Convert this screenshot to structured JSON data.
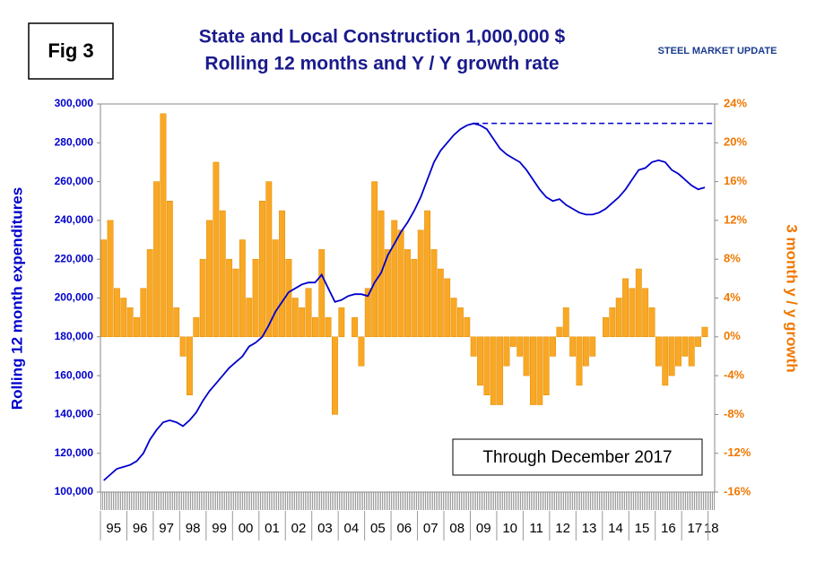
{
  "chart_data": {
    "type": "bar-line",
    "figure_label": "Fig 3",
    "title": "State and Local Construction 1,000,000 $",
    "subtitle": "Rolling 12 months and Y / Y growth rate",
    "logo": "STEEL MARKET UPDATE",
    "y_label": "Rolling 12 month expenditures",
    "y2_label": "3 month y / y growth",
    "annotation": "Through December 2017",
    "categories": [
      "95",
      null,
      null,
      null,
      "96",
      null,
      null,
      null,
      "97",
      null,
      null,
      null,
      "98",
      null,
      null,
      null,
      "99",
      null,
      null,
      null,
      "00",
      null,
      null,
      null,
      "01",
      null,
      null,
      null,
      "02",
      null,
      null,
      null,
      "03",
      null,
      null,
      null,
      "04",
      null,
      null,
      null,
      "05",
      null,
      null,
      null,
      "06",
      null,
      null,
      null,
      "07",
      null,
      null,
      null,
      "08",
      null,
      null,
      null,
      "09",
      null,
      null,
      null,
      "10",
      null,
      null,
      null,
      "11",
      null,
      null,
      null,
      "12",
      null,
      null,
      null,
      "13",
      null,
      null,
      null,
      "14",
      null,
      null,
      null,
      "15",
      null,
      null,
      null,
      "16",
      null,
      null,
      null,
      "17",
      null,
      null,
      null,
      "18"
    ],
    "series": [
      {
        "name": "3 month y / y growth",
        "kind": "bar",
        "axis": "y2",
        "color": "#f9a825",
        "values": [
          10,
          12,
          5,
          4,
          3,
          2,
          5,
          9,
          16,
          23,
          14,
          3,
          -2,
          -6,
          2,
          8,
          12,
          18,
          13,
          8,
          7,
          10,
          4,
          8,
          14,
          16,
          10,
          13,
          8,
          4,
          3,
          5,
          2,
          9,
          2,
          -8,
          3,
          0,
          2,
          -3,
          5,
          16,
          13,
          9,
          12,
          11,
          9,
          8,
          11,
          13,
          9,
          7,
          6,
          4,
          3,
          2,
          -2,
          -5,
          -6,
          -7,
          -7,
          -3,
          -1,
          -2,
          -4,
          -7,
          -7,
          -6,
          -2,
          1,
          3,
          -2,
          -5,
          -3,
          -2,
          0,
          2,
          3,
          4,
          6,
          5,
          7,
          5,
          3,
          -3,
          -5,
          -4,
          -3,
          -2,
          -3,
          -1,
          1,
          null
        ]
      },
      {
        "name": "Rolling 12 month expenditures",
        "kind": "line",
        "color": "#0000cc",
        "values": [
          106000,
          109000,
          112000,
          113000,
          114000,
          116000,
          120000,
          127000,
          132000,
          136000,
          137000,
          136000,
          134000,
          137000,
          141000,
          147000,
          152000,
          156000,
          160000,
          164000,
          167000,
          170000,
          175000,
          177000,
          180000,
          186000,
          193000,
          198000,
          203000,
          205000,
          207000,
          208000,
          208000,
          212000,
          205000,
          198000,
          199000,
          201000,
          202000,
          202000,
          201000,
          208000,
          213000,
          222000,
          228000,
          234000,
          239000,
          245000,
          252000,
          261000,
          270000,
          276000,
          280000,
          284000,
          287000,
          289000,
          290000,
          289000,
          287000,
          282000,
          277000,
          274000,
          272000,
          270000,
          266000,
          261000,
          256000,
          252000,
          250000,
          251000,
          248000,
          246000,
          244000,
          243000,
          243000,
          244000,
          246000,
          249000,
          252000,
          256000,
          261000,
          266000,
          267000,
          270000,
          271000,
          270000,
          266000,
          264000,
          261000,
          258000,
          256000,
          257000,
          null
        ]
      }
    ],
    "peak_line": {
      "value": 290000,
      "color": "#0000cc"
    },
    "ylim": [
      100000,
      300000
    ],
    "yticks": [
      {
        "value": 100000,
        "label": "100,000"
      },
      {
        "value": 120000,
        "label": "120,000"
      },
      {
        "value": 140000,
        "label": "140,000"
      },
      {
        "value": 160000,
        "label": "160,000"
      },
      {
        "value": 180000,
        "label": "180,000"
      },
      {
        "value": 200000,
        "label": "200,000"
      },
      {
        "value": 220000,
        "label": "220,000"
      },
      {
        "value": 240000,
        "label": "240,000"
      },
      {
        "value": 260000,
        "label": "260,000"
      },
      {
        "value": 280000,
        "label": "280,000"
      },
      {
        "value": 300000,
        "label": "300,000"
      }
    ],
    "y2lim": [
      -16,
      24
    ],
    "y2ticks": [
      {
        "value": -16,
        "label": "-16%"
      },
      {
        "value": -12,
        "label": "-12%"
      },
      {
        "value": -8,
        "label": "-8%"
      },
      {
        "value": -4,
        "label": "-4%"
      },
      {
        "value": 0,
        "label": "0%"
      },
      {
        "value": 4,
        "label": "4%"
      },
      {
        "value": 8,
        "label": "8%"
      },
      {
        "value": 12,
        "label": "12%"
      },
      {
        "value": 16,
        "label": "16%"
      },
      {
        "value": 20,
        "label": "20%"
      },
      {
        "value": 24,
        "label": "24%"
      }
    ]
  }
}
